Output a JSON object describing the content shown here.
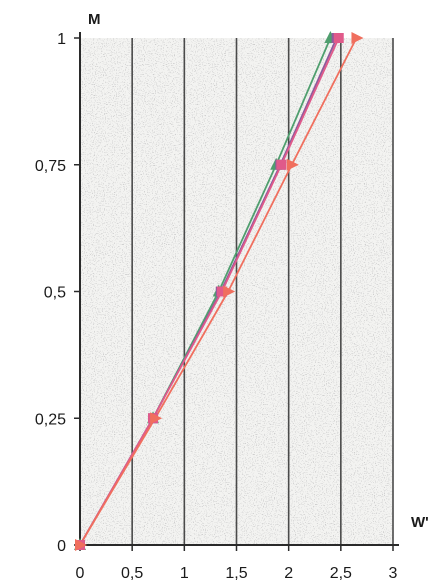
{
  "chart_data": {
    "type": "line",
    "xlabel": "W'",
    "ylabel": "M",
    "xlim": [
      0,
      3
    ],
    "ylim": [
      0,
      1
    ],
    "x_ticks": [
      "0",
      "0,5",
      "1",
      "1,5",
      "2",
      "2,5",
      "3"
    ],
    "x_tick_values": [
      0,
      0.5,
      1,
      1.5,
      2,
      2.5,
      3
    ],
    "y_ticks": [
      "0",
      "0,25",
      "0,5",
      "0,75",
      "1"
    ],
    "y_tick_values": [
      0,
      0.25,
      0.5,
      0.75,
      1
    ],
    "grid": "vertical",
    "background": "stippled gray",
    "series": [
      {
        "color": "#4f9e6e",
        "marker": "triangle-up",
        "x": [
          0,
          0.7,
          1.33,
          1.88,
          2.4
        ],
        "y": [
          0,
          0.25,
          0.5,
          0.75,
          1
        ]
      },
      {
        "color": "#8e5a9c",
        "marker": "square",
        "x": [
          0,
          0.7,
          1.35,
          1.92,
          2.46
        ],
        "y": [
          0,
          0.25,
          0.5,
          0.75,
          1
        ]
      },
      {
        "color": "#e05a8a",
        "marker": "square",
        "x": [
          0,
          0.7,
          1.36,
          1.93,
          2.48
        ],
        "y": [
          0,
          0.25,
          0.5,
          0.75,
          1
        ]
      },
      {
        "color": "#f06f5e",
        "marker": "triangle-right",
        "x": [
          0,
          0.72,
          1.42,
          2.03,
          2.65
        ],
        "y": [
          0,
          0.25,
          0.5,
          0.75,
          1
        ]
      }
    ]
  }
}
